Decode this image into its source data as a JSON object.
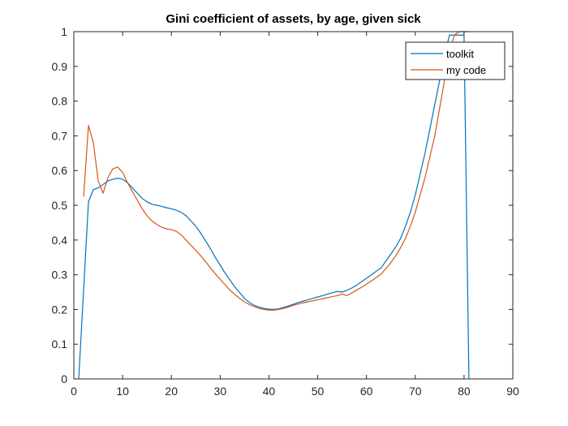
{
  "chart_data": {
    "type": "line",
    "title": "Gini coefficient of assets, by age, given sick",
    "xlabel": "",
    "ylabel": "",
    "xlim": [
      0,
      90
    ],
    "ylim": [
      0,
      1
    ],
    "xticks": [
      0,
      10,
      20,
      30,
      40,
      50,
      60,
      70,
      80,
      90
    ],
    "yticks": [
      0,
      0.1,
      0.2,
      0.3,
      0.4,
      0.5,
      0.6,
      0.7,
      0.8,
      0.9,
      1
    ],
    "ytick_labels": [
      "0",
      "0.1",
      "0.2",
      "0.3",
      "0.4",
      "0.5",
      "0.6",
      "0.7",
      "0.8",
      "0.9",
      "1"
    ],
    "grid": false,
    "legend_position": "top-right",
    "series": [
      {
        "name": "toolkit",
        "color": "#0072BD",
        "x": [
          1,
          3,
          4,
          5,
          6,
          7,
          8,
          9,
          10,
          11,
          12,
          13,
          14,
          15,
          16,
          17,
          18,
          19,
          20,
          21,
          22,
          23,
          24,
          25,
          26,
          27,
          28,
          29,
          30,
          31,
          32,
          33,
          34,
          35,
          36,
          37,
          38,
          39,
          40,
          41,
          42,
          43,
          44,
          45,
          46,
          47,
          48,
          49,
          50,
          51,
          52,
          53,
          54,
          55,
          56,
          57,
          58,
          59,
          60,
          61,
          62,
          63,
          64,
          65,
          66,
          67,
          68,
          69,
          70,
          71,
          72,
          73,
          74,
          75,
          76,
          77,
          78,
          79,
          80,
          81
        ],
        "y": [
          0.0,
          0.51,
          0.545,
          0.55,
          0.56,
          0.57,
          0.575,
          0.578,
          0.575,
          0.565,
          0.55,
          0.535,
          0.52,
          0.51,
          0.503,
          0.5,
          0.497,
          0.493,
          0.49,
          0.486,
          0.48,
          0.47,
          0.455,
          0.44,
          0.42,
          0.398,
          0.375,
          0.35,
          0.328,
          0.305,
          0.285,
          0.265,
          0.248,
          0.232,
          0.22,
          0.212,
          0.207,
          0.203,
          0.201,
          0.2,
          0.202,
          0.206,
          0.21,
          0.215,
          0.22,
          0.224,
          0.228,
          0.232,
          0.236,
          0.24,
          0.244,
          0.248,
          0.252,
          0.25,
          0.255,
          0.262,
          0.27,
          0.28,
          0.29,
          0.3,
          0.31,
          0.32,
          0.34,
          0.36,
          0.38,
          0.405,
          0.44,
          0.48,
          0.53,
          0.59,
          0.65,
          0.72,
          0.79,
          0.86,
          0.93,
          0.99,
          0.99,
          0.99,
          0.99,
          0.0
        ]
      },
      {
        "name": "my code",
        "color": "#D95319",
        "x": [
          2,
          3,
          4,
          5,
          6,
          7,
          8,
          9,
          10,
          11,
          12,
          13,
          14,
          15,
          16,
          17,
          18,
          19,
          20,
          21,
          22,
          23,
          24,
          25,
          26,
          27,
          28,
          29,
          30,
          31,
          32,
          33,
          34,
          35,
          36,
          37,
          38,
          39,
          40,
          41,
          42,
          43,
          44,
          45,
          46,
          47,
          48,
          49,
          50,
          51,
          52,
          53,
          54,
          55,
          56,
          57,
          58,
          59,
          60,
          61,
          62,
          63,
          64,
          65,
          66,
          67,
          68,
          69,
          70,
          71,
          72,
          73,
          74,
          75,
          76,
          77,
          78,
          79,
          80,
          81
        ],
        "y": [
          0.525,
          0.73,
          0.68,
          0.57,
          0.535,
          0.58,
          0.605,
          0.61,
          0.595,
          0.565,
          0.54,
          0.515,
          0.49,
          0.47,
          0.455,
          0.445,
          0.437,
          0.432,
          0.43,
          0.425,
          0.415,
          0.4,
          0.385,
          0.37,
          0.355,
          0.338,
          0.32,
          0.303,
          0.287,
          0.271,
          0.256,
          0.243,
          0.232,
          0.222,
          0.214,
          0.208,
          0.203,
          0.2,
          0.198,
          0.198,
          0.2,
          0.203,
          0.207,
          0.212,
          0.216,
          0.219,
          0.222,
          0.225,
          0.228,
          0.231,
          0.234,
          0.237,
          0.24,
          0.244,
          0.24,
          0.248,
          0.256,
          0.264,
          0.273,
          0.282,
          0.292,
          0.302,
          0.318,
          0.335,
          0.355,
          0.378,
          0.405,
          0.44,
          0.48,
          0.53,
          0.58,
          0.64,
          0.7,
          0.78,
          0.86,
          0.94,
          0.99,
          1.0,
          1.0,
          1.0
        ]
      }
    ]
  }
}
